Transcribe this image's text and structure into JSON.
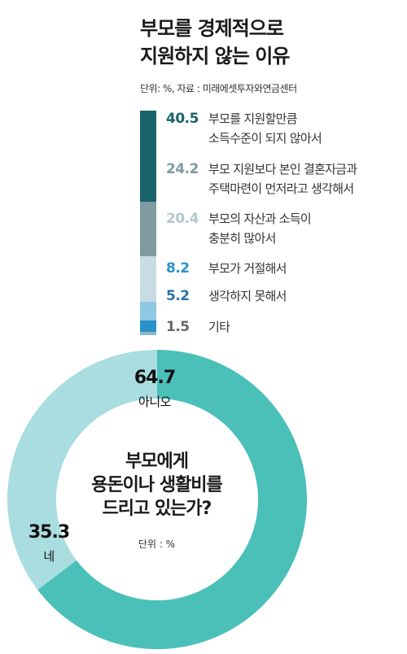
{
  "charts": {
    "reasons": {
      "title_line1": "부모를 경제적으로",
      "title_line2": "지원하지 않는 이유",
      "unit": "단위: %, 자료 : 미래에셋투자와연금센터",
      "colors": [
        "#19636a",
        "#7f9aa1",
        "#c7dde3",
        "#8fc8e2",
        "#2a92c9",
        "#8fb7c7"
      ],
      "value_colors": [
        "#19636a",
        "#7f9aa1",
        "#b6c7cc",
        "#2a92c9",
        "#2a6fab",
        "#666666"
      ]
    },
    "support": {
      "question_line1": "부모에게",
      "question_line2": "용돈이나 생활비를",
      "question_line3": "드리고 있는가?",
      "unit": "단위 : %",
      "colors": [
        "#4ac0b9",
        "#a9dde0"
      ]
    }
  },
  "chart_data": [
    {
      "type": "bar",
      "stacked": true,
      "title": "부모를 경제적으로 지원하지 않는 이유",
      "ylabel": "%",
      "categories": [
        "부모를 지원할만큼 소득수준이 되지 않아서",
        "부모 지원보다 본인 결혼자금과 주택마련이 먼저라고 생각해서",
        "부모의 자산과 소득이 충분히 많아서",
        "부모가 거절해서",
        "생각하지 못해서",
        "기타"
      ],
      "label_lines": [
        [
          "부모를 지원할만큼",
          "소득수준이 되지 않아서"
        ],
        [
          "부모 지원보다 본인 결혼자금과",
          "주택마련이 먼저라고 생각해서"
        ],
        [
          "부모의 자산과 소득이",
          "충분히 많아서"
        ],
        [
          "부모가 거절해서"
        ],
        [
          "생각하지 못해서"
        ],
        [
          "기타"
        ]
      ],
      "values": [
        40.5,
        24.2,
        20.4,
        8.2,
        5.2,
        1.5
      ],
      "value_labels": [
        "40.5",
        "24.2",
        "20.4",
        "8.2",
        "5.2",
        "1.5"
      ]
    },
    {
      "type": "pie",
      "donut": true,
      "title": "부모에게 용돈이나 생활비를 드리고 있는가?",
      "categories": [
        "아니오",
        "네"
      ],
      "values": [
        64.7,
        35.3
      ],
      "value_labels": [
        "64.7",
        "35.3"
      ]
    }
  ]
}
